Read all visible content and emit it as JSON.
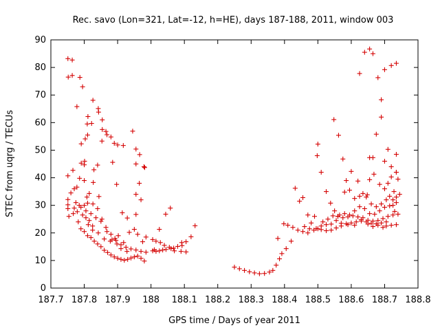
{
  "chart_data": {
    "type": "scatter",
    "title": "Rec. savo (Lon=321, Lat=-12, h=HE), days 187-188, 2011, window 003",
    "xlabel": "GPS time / Days of year 2011",
    "ylabel": "STEC from uqrg / TECUs",
    "xlim": [
      187.7,
      188.8
    ],
    "ylim": [
      0,
      90
    ],
    "grid": false,
    "x_ticks": [
      "187.7",
      "187.8",
      "187.9",
      "188",
      "188.1",
      "188.2",
      "188.3",
      "188.4",
      "188.5",
      "188.6",
      "188.7",
      "188.8"
    ],
    "y_ticks": [
      "0",
      "10",
      "20",
      "30",
      "40",
      "50",
      "60",
      "70",
      "80",
      "90"
    ],
    "series": [
      {
        "name": "STEC",
        "color": "#d40000",
        "marker": "plus",
        "points": [
          [
            187.751,
            83.2
          ],
          [
            187.764,
            82.7
          ],
          [
            187.752,
            76.5
          ],
          [
            187.764,
            77.1
          ],
          [
            187.787,
            76.4
          ],
          [
            187.778,
            65.8
          ],
          [
            187.795,
            73.0
          ],
          [
            187.811,
            62.2
          ],
          [
            187.809,
            59.5
          ],
          [
            187.826,
            68.1
          ],
          [
            187.842,
            65.1
          ],
          [
            187.843,
            63.8
          ],
          [
            187.822,
            59.7
          ],
          [
            187.854,
            61.0
          ],
          [
            187.865,
            56.8
          ],
          [
            187.868,
            55.6
          ],
          [
            187.854,
            57.5
          ],
          [
            187.88,
            54.8
          ],
          [
            187.791,
            52.3
          ],
          [
            187.803,
            54.1
          ],
          [
            187.81,
            55.5
          ],
          [
            187.853,
            53.3
          ],
          [
            187.89,
            52.5
          ],
          [
            187.9,
            51.9
          ],
          [
            187.917,
            51.7
          ],
          [
            187.945,
            56.9
          ],
          [
            187.955,
            50.4
          ],
          [
            187.966,
            48.4
          ],
          [
            187.979,
            44.0
          ],
          [
            187.981,
            43.7
          ],
          [
            187.955,
            45.0
          ],
          [
            187.885,
            45.6
          ],
          [
            187.791,
            45.3
          ],
          [
            187.8,
            44.7
          ],
          [
            187.801,
            46.0
          ],
          [
            187.829,
            42.9
          ],
          [
            187.84,
            44.6
          ],
          [
            187.766,
            42.7
          ],
          [
            187.751,
            40.7
          ],
          [
            187.786,
            39.8
          ],
          [
            187.8,
            39.0
          ],
          [
            187.827,
            38.3
          ],
          [
            187.844,
            33.2
          ],
          [
            187.897,
            37.6
          ],
          [
            187.965,
            38.0
          ],
          [
            187.955,
            34.0
          ],
          [
            187.97,
            32.0
          ],
          [
            187.914,
            27.3
          ],
          [
            187.929,
            25.4
          ],
          [
            187.955,
            26.7
          ],
          [
            188.058,
            29.0
          ],
          [
            188.044,
            26.8
          ],
          [
            188.132,
            22.6
          ],
          [
            188.12,
            18.6
          ],
          [
            188.092,
            16.5
          ],
          [
            188.025,
            21.3
          ],
          [
            187.751,
            32.1
          ],
          [
            187.751,
            30.2
          ],
          [
            187.751,
            28.8
          ],
          [
            187.76,
            34.5
          ],
          [
            187.77,
            36.0
          ],
          [
            187.778,
            36.6
          ],
          [
            187.754,
            26.0
          ],
          [
            187.767,
            27.0
          ],
          [
            187.779,
            27.7
          ],
          [
            187.79,
            29.3
          ],
          [
            187.8,
            30.0
          ],
          [
            187.81,
            30.8
          ],
          [
            187.815,
            34.3
          ],
          [
            187.782,
            24.0
          ],
          [
            187.79,
            21.5
          ],
          [
            187.8,
            20.5
          ],
          [
            187.81,
            19.0
          ],
          [
            187.82,
            18.3
          ],
          [
            187.83,
            17.0
          ],
          [
            187.84,
            16.0
          ],
          [
            187.85,
            15.0
          ],
          [
            187.86,
            13.7
          ],
          [
            187.87,
            12.9
          ],
          [
            187.88,
            12.0
          ],
          [
            187.89,
            11.3
          ],
          [
            187.9,
            10.8
          ],
          [
            187.91,
            10.4
          ],
          [
            187.92,
            10.1
          ],
          [
            187.93,
            10.4
          ],
          [
            187.94,
            10.9
          ],
          [
            187.95,
            11.3
          ],
          [
            187.96,
            11.6
          ],
          [
            187.97,
            10.8
          ],
          [
            187.98,
            9.8
          ],
          [
            187.805,
            28.0
          ],
          [
            187.82,
            27.0
          ],
          [
            187.835,
            25.5
          ],
          [
            187.85,
            24.2
          ],
          [
            187.865,
            22.0
          ],
          [
            187.88,
            19.5
          ],
          [
            187.895,
            17.3
          ],
          [
            187.91,
            15.7
          ],
          [
            187.925,
            14.8
          ],
          [
            187.94,
            14.2
          ],
          [
            187.955,
            13.8
          ],
          [
            187.97,
            13.3
          ],
          [
            187.985,
            13.0
          ],
          [
            187.808,
            33.0
          ],
          [
            187.826,
            30.5
          ],
          [
            187.84,
            28.8
          ],
          [
            187.853,
            25.0
          ],
          [
            187.868,
            20.5
          ],
          [
            187.883,
            17.5
          ],
          [
            187.898,
            16.0
          ],
          [
            187.91,
            14.3
          ],
          [
            187.928,
            13.3
          ],
          [
            187.812,
            23.0
          ],
          [
            187.825,
            21.0
          ],
          [
            187.842,
            20.0
          ],
          [
            187.86,
            17.8
          ],
          [
            187.878,
            17.0
          ],
          [
            187.892,
            18.0
          ],
          [
            187.902,
            19.0
          ],
          [
            187.918,
            16.5
          ],
          [
            187.935,
            20.2
          ],
          [
            187.95,
            21.3
          ],
          [
            187.96,
            19.5
          ],
          [
            187.975,
            16.8
          ],
          [
            187.985,
            18.5
          ],
          [
            188.005,
            17.6
          ],
          [
            188.015,
            17.0
          ],
          [
            188.028,
            16.5
          ],
          [
            188.04,
            15.5
          ],
          [
            188.055,
            14.8
          ],
          [
            188.068,
            14.5
          ],
          [
            188.08,
            15.1
          ],
          [
            188.093,
            15.4
          ],
          [
            188.105,
            16.8
          ],
          [
            188.01,
            13.9
          ],
          [
            188.025,
            13.5
          ],
          [
            188.045,
            14.0
          ],
          [
            188.07,
            13.5
          ],
          [
            188.09,
            13.3
          ],
          [
            188.105,
            13.1
          ],
          [
            188.005,
            13.5
          ],
          [
            188.015,
            13.3
          ],
          [
            188.035,
            13.8
          ],
          [
            188.06,
            14.3
          ],
          [
            187.77,
            29.0
          ],
          [
            187.775,
            31.0
          ],
          [
            187.785,
            30.0
          ],
          [
            187.795,
            26.5
          ],
          [
            187.805,
            25.5
          ],
          [
            187.815,
            24.5
          ],
          [
            187.825,
            22.5
          ],
          [
            188.25,
            7.6
          ],
          [
            188.265,
            7.0
          ],
          [
            188.28,
            6.4
          ],
          [
            188.295,
            5.9
          ],
          [
            188.31,
            5.5
          ],
          [
            188.325,
            5.2
          ],
          [
            188.34,
            5.3
          ],
          [
            188.355,
            5.8
          ],
          [
            188.365,
            6.4
          ],
          [
            188.375,
            8.3
          ],
          [
            188.385,
            10.6
          ],
          [
            188.392,
            12.5
          ],
          [
            188.405,
            14.3
          ],
          [
            188.42,
            17.0
          ],
          [
            188.38,
            18.0
          ],
          [
            188.398,
            23.3
          ],
          [
            188.41,
            22.8
          ],
          [
            188.425,
            22.0
          ],
          [
            188.44,
            21.0
          ],
          [
            188.455,
            20.5
          ],
          [
            188.47,
            20.0
          ],
          [
            188.488,
            21.0
          ],
          [
            188.5,
            21.5
          ],
          [
            188.51,
            21.2
          ],
          [
            188.525,
            20.8
          ],
          [
            188.54,
            21.0
          ],
          [
            188.555,
            21.8
          ],
          [
            188.57,
            22.5
          ],
          [
            188.585,
            23.3
          ],
          [
            188.6,
            23.6
          ],
          [
            188.615,
            24.0
          ],
          [
            188.63,
            24.3
          ],
          [
            188.645,
            24.0
          ],
          [
            188.66,
            23.5
          ],
          [
            188.675,
            23.3
          ],
          [
            188.69,
            23.6
          ],
          [
            188.705,
            22.5
          ],
          [
            188.72,
            22.8
          ],
          [
            188.735,
            23.0
          ],
          [
            188.432,
            36.2
          ],
          [
            188.445,
            31.5
          ],
          [
            188.455,
            32.8
          ],
          [
            188.47,
            26.5
          ],
          [
            188.48,
            23.6
          ],
          [
            188.49,
            26.0
          ],
          [
            188.498,
            48.0
          ],
          [
            188.5,
            52.2
          ],
          [
            188.51,
            42.0
          ],
          [
            188.525,
            35.0
          ],
          [
            188.538,
            30.8
          ],
          [
            188.55,
            28.0
          ],
          [
            188.56,
            26.0
          ],
          [
            188.548,
            61.1
          ],
          [
            188.562,
            55.4
          ],
          [
            188.575,
            46.8
          ],
          [
            188.585,
            39.0
          ],
          [
            188.6,
            42.3
          ],
          [
            188.62,
            38.8
          ],
          [
            188.635,
            34.3
          ],
          [
            188.648,
            33.8
          ],
          [
            188.655,
            39.3
          ],
          [
            188.668,
            41.3
          ],
          [
            188.685,
            37.6
          ],
          [
            188.7,
            36.0
          ],
          [
            188.71,
            38.0
          ],
          [
            188.72,
            40.3
          ],
          [
            188.735,
            42.0
          ],
          [
            188.735,
            48.5
          ],
          [
            188.72,
            44.0
          ],
          [
            188.71,
            50.3
          ],
          [
            188.7,
            46.0
          ],
          [
            188.69,
            62.0
          ],
          [
            188.69,
            68.3
          ],
          [
            188.68,
            76.3
          ],
          [
            188.64,
            85.5
          ],
          [
            188.655,
            86.7
          ],
          [
            188.665,
            85.0
          ],
          [
            188.625,
            77.8
          ],
          [
            188.7,
            79.2
          ],
          [
            188.72,
            80.7
          ],
          [
            188.735,
            81.5
          ],
          [
            188.655,
            47.3
          ],
          [
            188.665,
            47.3
          ],
          [
            188.675,
            55.8
          ],
          [
            188.58,
            34.8
          ],
          [
            188.595,
            35.5
          ],
          [
            188.61,
            32.5
          ],
          [
            188.625,
            33.3
          ],
          [
            188.645,
            33.0
          ],
          [
            188.66,
            30.5
          ],
          [
            188.675,
            29.5
          ],
          [
            188.69,
            30.5
          ],
          [
            188.705,
            32.0
          ],
          [
            188.715,
            33.3
          ],
          [
            188.725,
            32.0
          ],
          [
            188.735,
            33.0
          ],
          [
            188.735,
            31.0
          ],
          [
            188.725,
            30.0
          ],
          [
            188.565,
            26.5
          ],
          [
            188.58,
            27.0
          ],
          [
            188.595,
            26.5
          ],
          [
            188.61,
            28.0
          ],
          [
            188.625,
            29.5
          ],
          [
            188.64,
            28.8
          ],
          [
            188.655,
            27.0
          ],
          [
            188.67,
            26.8
          ],
          [
            188.685,
            28.0
          ],
          [
            188.7,
            29.3
          ],
          [
            188.715,
            29.8
          ],
          [
            188.73,
            27.8
          ],
          [
            188.515,
            24.0
          ],
          [
            188.53,
            25.0
          ],
          [
            188.545,
            26.2
          ],
          [
            188.56,
            26.0
          ],
          [
            188.575,
            25.5
          ],
          [
            188.59,
            25.8
          ],
          [
            188.605,
            26.2
          ],
          [
            188.62,
            25.8
          ],
          [
            188.635,
            25.5
          ],
          [
            188.65,
            24.6
          ],
          [
            188.665,
            24.3
          ],
          [
            188.68,
            24.5
          ],
          [
            188.695,
            25.2
          ],
          [
            188.71,
            26.0
          ],
          [
            188.725,
            26.5
          ],
          [
            188.74,
            26.8
          ],
          [
            188.46,
            22.3
          ],
          [
            188.475,
            21.5
          ],
          [
            188.495,
            21.6
          ],
          [
            188.51,
            22.5
          ],
          [
            188.525,
            23.0
          ],
          [
            188.54,
            23.2
          ],
          [
            188.555,
            24.5
          ],
          [
            188.57,
            23.5
          ],
          [
            188.59,
            23.0
          ],
          [
            188.61,
            22.8
          ],
          [
            188.63,
            24.8
          ],
          [
            188.65,
            23.2
          ],
          [
            188.665,
            22.3
          ],
          [
            188.68,
            22.8
          ],
          [
            188.695,
            22.0
          ],
          [
            188.705,
            24.0
          ],
          [
            188.735,
            42.0
          ],
          [
            188.74,
            39.5
          ],
          [
            188.728,
            35.0
          ],
          [
            188.745,
            34.0
          ]
        ]
      }
    ]
  }
}
